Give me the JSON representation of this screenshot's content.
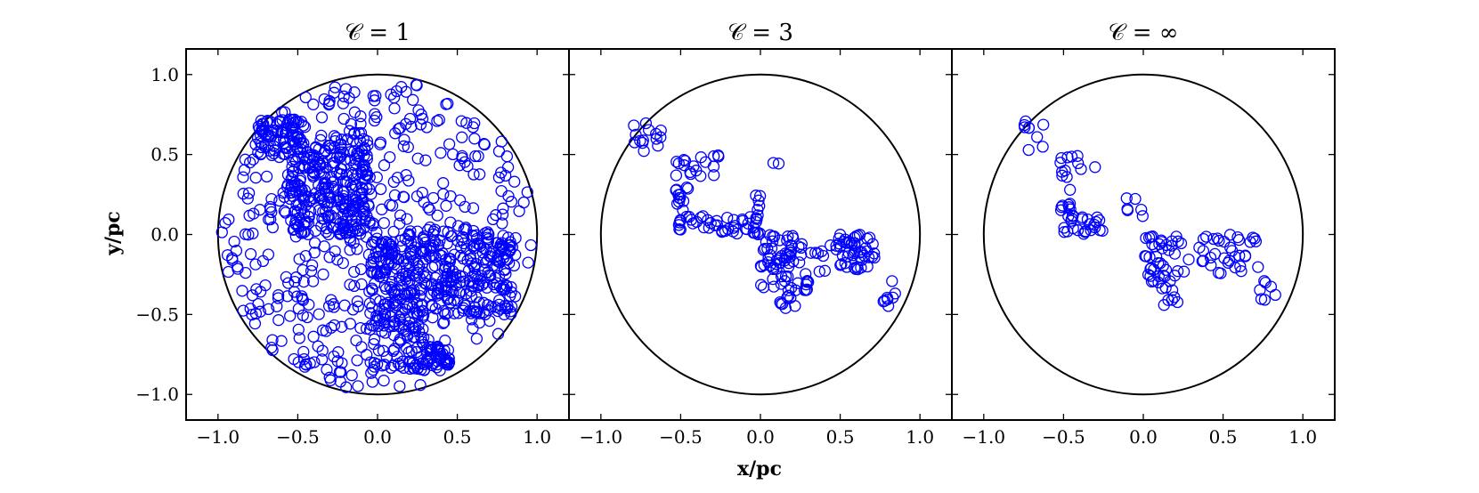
{
  "chart_data": {
    "type": "scatter",
    "xlabel": "x/pc",
    "ylabel": "y/pc",
    "xlim": [
      -1.2,
      1.2
    ],
    "ylim": [
      -1.16,
      1.16
    ],
    "xticks": [
      "−1.0",
      "−0.5",
      "0.0",
      "0.5",
      "1.0"
    ],
    "yticks": [
      "−1.0",
      "−0.5",
      "0.0",
      "0.5",
      "1.0"
    ],
    "xtick_values": [
      -1.0,
      -0.5,
      0.0,
      0.5,
      1.0
    ],
    "ytick_values": [
      -1.0,
      -0.5,
      0.0,
      0.5,
      1.0
    ],
    "boundary_circle_radius": 1.0,
    "marker": "open circle",
    "marker_color": "#0000ff",
    "panels": [
      {
        "title": "𝒞 = 1",
        "description": "approx. 1500 points: uniform disc plus dense filament clumps",
        "clusters": [
          {
            "kind": "disc",
            "n": 480,
            "r": 0.98
          },
          {
            "kind": "rect",
            "n": 230,
            "x": [
              -0.55,
              -0.05
            ],
            "y": [
              0.0,
              0.5
            ]
          },
          {
            "kind": "rect",
            "n": 330,
            "x": [
              -0.05,
              0.85
            ],
            "y": [
              -0.5,
              0.02
            ]
          },
          {
            "kind": "rect",
            "n": 80,
            "x": [
              -0.75,
              -0.45
            ],
            "y": [
              0.5,
              0.72
            ]
          },
          {
            "kind": "rect",
            "n": 70,
            "x": [
              -0.05,
              0.3
            ],
            "y": [
              -0.85,
              -0.5
            ]
          },
          {
            "kind": "rect",
            "n": 40,
            "x": [
              0.3,
              0.45
            ],
            "y": [
              -0.85,
              -0.7
            ]
          },
          {
            "kind": "rect",
            "n": 40,
            "x": [
              -0.55,
              -0.05
            ],
            "y": [
              0.5,
              0.65
            ]
          }
        ]
      },
      {
        "title": "𝒞 = 3",
        "description": "approx. 300 points along a filament",
        "clusters": [
          {
            "kind": "rect",
            "n": 14,
            "x": [
              -0.8,
              -0.62
            ],
            "y": [
              0.5,
              0.7
            ]
          },
          {
            "kind": "rect",
            "n": 18,
            "x": [
              -0.55,
              -0.25
            ],
            "y": [
              0.35,
              0.5
            ]
          },
          {
            "kind": "rect",
            "n": 12,
            "x": [
              -0.55,
              -0.45
            ],
            "y": [
              0.15,
              0.3
            ]
          },
          {
            "kind": "rect",
            "n": 45,
            "x": [
              -0.52,
              0.0
            ],
            "y": [
              0.0,
              0.12
            ]
          },
          {
            "kind": "rect",
            "n": 6,
            "x": [
              -0.05,
              0.0
            ],
            "y": [
              0.1,
              0.25
            ]
          },
          {
            "kind": "rect",
            "n": 70,
            "x": [
              0.0,
              0.3
            ],
            "y": [
              -0.35,
              0.0
            ]
          },
          {
            "kind": "rect",
            "n": 8,
            "x": [
              0.12,
              0.22
            ],
            "y": [
              -0.47,
              -0.38
            ]
          },
          {
            "kind": "rect",
            "n": 50,
            "x": [
              0.45,
              0.72
            ],
            "y": [
              -0.22,
              0.0
            ]
          },
          {
            "kind": "rect",
            "n": 8,
            "x": [
              0.75,
              0.85
            ],
            "y": [
              -0.45,
              -0.28
            ]
          },
          {
            "kind": "rect",
            "n": 8,
            "x": [
              0.3,
              0.45
            ],
            "y": [
              -0.25,
              -0.05
            ]
          },
          {
            "kind": "rect",
            "n": 2,
            "x": [
              0.08,
              0.12
            ],
            "y": [
              0.42,
              0.45
            ]
          }
        ]
      },
      {
        "title": "𝒞 = ∞",
        "description": "approx. 200 points along a filament",
        "clusters": [
          {
            "kind": "rect",
            "n": 9,
            "x": [
              -0.75,
              -0.62
            ],
            "y": [
              0.5,
              0.72
            ]
          },
          {
            "kind": "rect",
            "n": 12,
            "x": [
              -0.52,
              -0.28
            ],
            "y": [
              0.35,
              0.5
            ]
          },
          {
            "kind": "rect",
            "n": 8,
            "x": [
              -0.52,
              -0.45
            ],
            "y": [
              0.15,
              0.28
            ]
          },
          {
            "kind": "rect",
            "n": 25,
            "x": [
              -0.52,
              -0.25
            ],
            "y": [
              0.0,
              0.12
            ]
          },
          {
            "kind": "rect",
            "n": 6,
            "x": [
              -0.12,
              0.0
            ],
            "y": [
              0.05,
              0.25
            ]
          },
          {
            "kind": "rect",
            "n": 45,
            "x": [
              0.0,
              0.3
            ],
            "y": [
              -0.35,
              0.0
            ]
          },
          {
            "kind": "rect",
            "n": 5,
            "x": [
              0.12,
              0.22
            ],
            "y": [
              -0.45,
              -0.38
            ]
          },
          {
            "kind": "rect",
            "n": 35,
            "x": [
              0.35,
              0.72
            ],
            "y": [
              -0.25,
              0.0
            ]
          },
          {
            "kind": "rect",
            "n": 7,
            "x": [
              0.72,
              0.85
            ],
            "y": [
              -0.42,
              -0.28
            ]
          }
        ]
      }
    ]
  }
}
